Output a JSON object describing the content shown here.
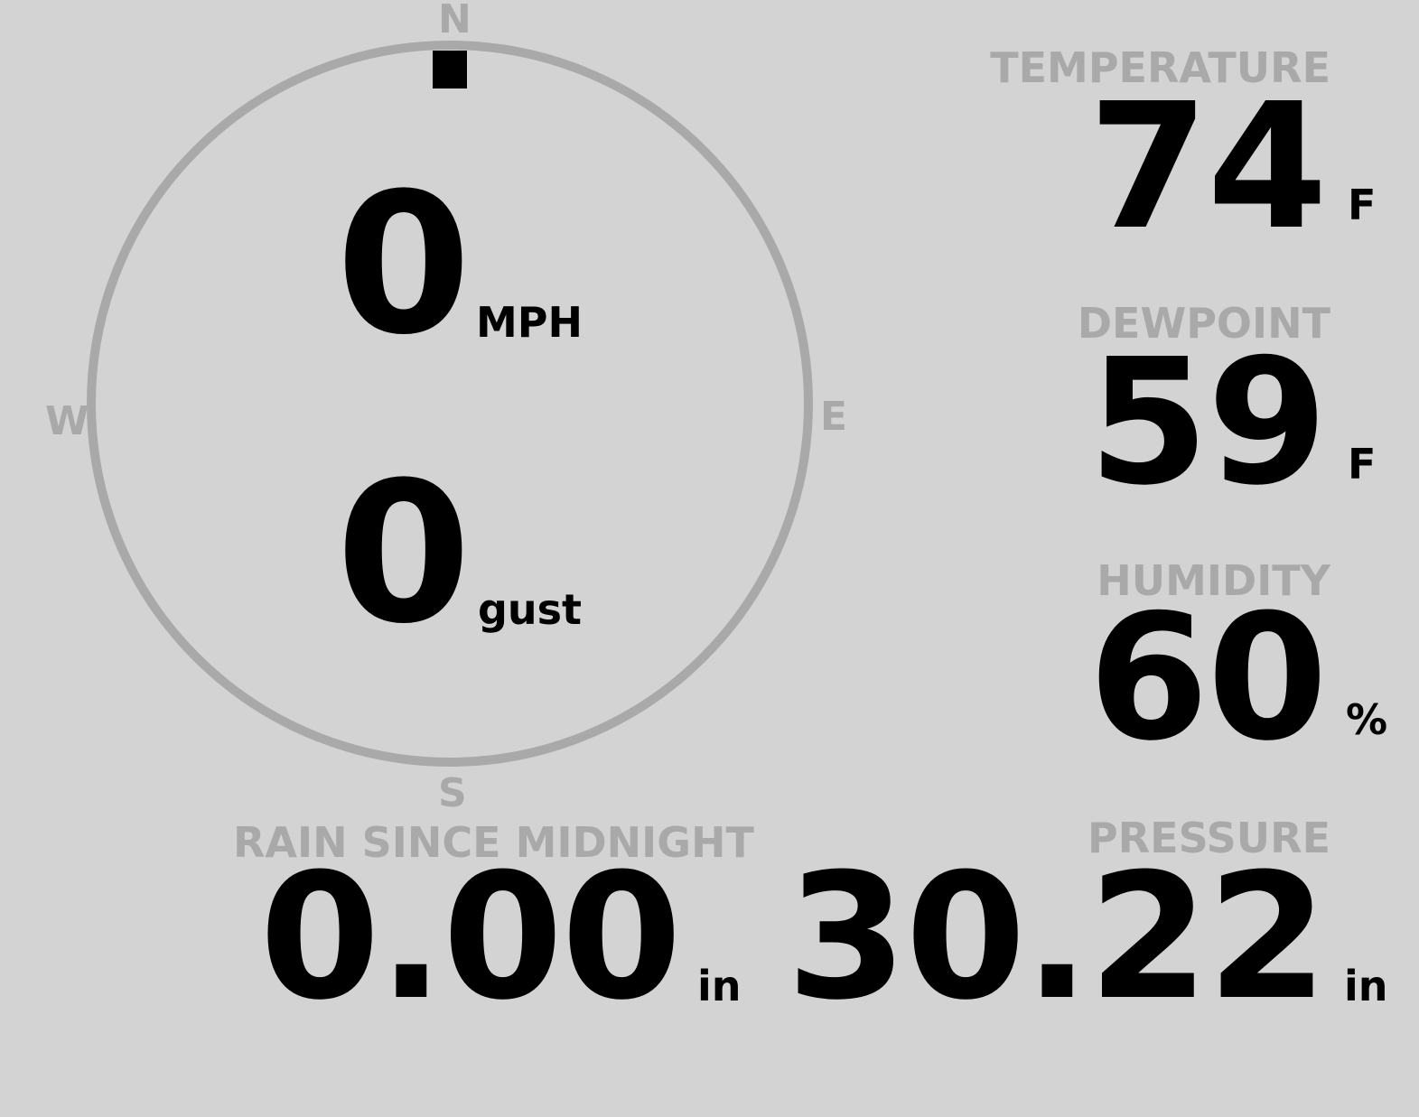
{
  "wind": {
    "direction_deg": 0,
    "speed": "0",
    "speed_unit": "MPH",
    "gust": "0",
    "gust_label": "gust",
    "compass": {
      "n": "N",
      "e": "E",
      "s": "S",
      "w": "W"
    }
  },
  "temperature": {
    "label": "TEMPERATURE",
    "value": "74",
    "unit": "F"
  },
  "dewpoint": {
    "label": "DEWPOINT",
    "value": "59",
    "unit": "F"
  },
  "humidity": {
    "label": "HUMIDITY",
    "value": "60",
    "unit": "%"
  },
  "rain": {
    "label": "RAIN SINCE MIDNIGHT",
    "value": "0.00",
    "unit": "in"
  },
  "pressure": {
    "label": "PRESSURE",
    "value": "30.22",
    "unit": "in"
  },
  "colors": {
    "background": "#d3d3d3",
    "ring": "#a9a9a9",
    "label": "#a9a9a9",
    "value": "#000000"
  }
}
